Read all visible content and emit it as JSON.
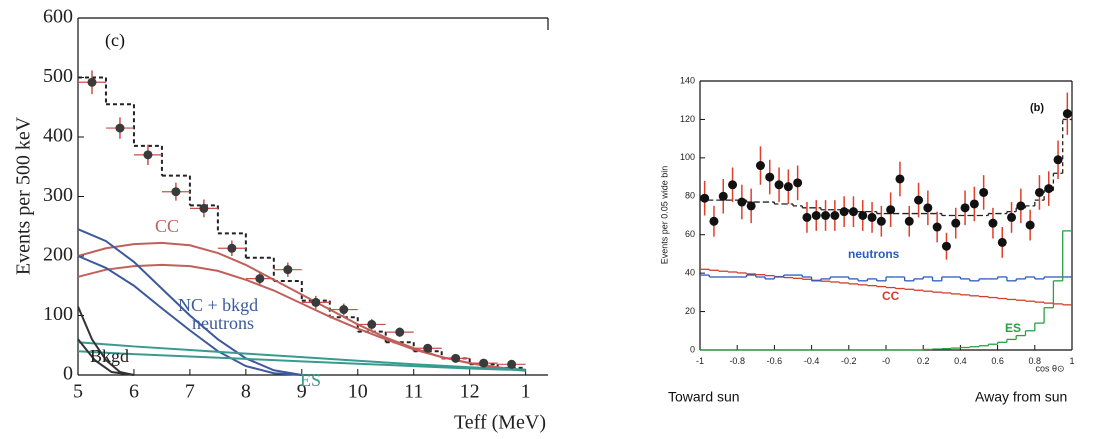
{
  "chart_data": [
    {
      "type": "line",
      "title": "(c)",
      "y_label": "Events per 500 keV",
      "x_label": "Teff (MeV)",
      "xlim": [
        5,
        13.4
      ],
      "ylim": [
        0,
        600
      ],
      "xticks": [
        5,
        6,
        7,
        8,
        9,
        10,
        11,
        12,
        {
          "value": 13,
          "label": "1"
        }
      ],
      "yticks": [
        0,
        100,
        200,
        300,
        400,
        500,
        600
      ],
      "series": [
        {
          "kind": "step",
          "color": "#222222",
          "dash": true,
          "bins": [
            5,
            5.5,
            6,
            6.5,
            7,
            7.5,
            8,
            8.5,
            9,
            9.5,
            10,
            10.5,
            11,
            11.5,
            12,
            12.5,
            13
          ],
          "values": [
            500,
            455,
            385,
            335,
            285,
            238,
            197,
            158,
            125,
            97,
            73,
            55,
            40,
            28,
            18,
            12
          ]
        },
        {
          "kind": "curve",
          "color": "#c0605a",
          "x": [
            5,
            5.5,
            6,
            6.5,
            7,
            7.5,
            8,
            8.5,
            9,
            9.5,
            10,
            10.5,
            11,
            11.5,
            12,
            12.5,
            13
          ],
          "values": [
            200,
            213,
            220,
            222,
            218,
            205,
            185,
            160,
            135,
            110,
            85,
            63,
            45,
            30,
            20,
            12,
            7
          ]
        },
        {
          "kind": "curve",
          "color": "#c0605a",
          "x": [
            5,
            5.5,
            6,
            6.5,
            7,
            7.5,
            8,
            8.5,
            9,
            9.5,
            10,
            10.5,
            11,
            11.5,
            12,
            12.5,
            13
          ],
          "values": [
            165,
            177,
            183,
            185,
            183,
            175,
            160,
            142,
            120,
            98,
            78,
            60,
            43,
            30,
            20,
            13,
            8
          ]
        },
        {
          "kind": "curve",
          "color": "#3c5a99",
          "x": [
            5,
            5.5,
            6,
            6.5,
            7,
            7.5,
            8,
            8.5,
            9
          ],
          "values": [
            245,
            225,
            190,
            145,
            100,
            60,
            28,
            8,
            0
          ]
        },
        {
          "kind": "curve",
          "color": "#3c5a99",
          "x": [
            5,
            5.5,
            6,
            6.5,
            7,
            7.5,
            8,
            8.5,
            9
          ],
          "values": [
            200,
            180,
            150,
            112,
            75,
            40,
            15,
            3,
            0
          ]
        },
        {
          "kind": "curve",
          "color": "#3a9a90",
          "x": [
            5,
            6,
            7,
            8,
            9,
            10,
            11,
            12,
            13
          ],
          "values": [
            55,
            48,
            42,
            36,
            30,
            24,
            18,
            13,
            9
          ]
        },
        {
          "kind": "curve",
          "color": "#3a9a90",
          "x": [
            5,
            6,
            7,
            8,
            9,
            10,
            11,
            12,
            13
          ],
          "values": [
            40,
            35,
            31,
            27,
            23,
            19,
            15,
            11,
            8
          ]
        },
        {
          "kind": "curve",
          "color": "#333333",
          "x": [
            5,
            5.25,
            5.5,
            5.75,
            6
          ],
          "values": [
            115,
            60,
            25,
            5,
            0
          ]
        },
        {
          "kind": "curve",
          "color": "#333333",
          "x": [
            5,
            5.3,
            5.6,
            6
          ],
          "values": [
            60,
            25,
            5,
            0
          ]
        },
        {
          "kind": "points",
          "color": "#3a3a3a",
          "error_color": "#c8504a",
          "xerr": 0.25,
          "x": [
            5.25,
            5.75,
            6.25,
            6.75,
            7.25,
            7.75,
            8.25,
            8.75,
            9.25,
            9.75,
            10.25,
            10.75,
            11.25,
            11.75,
            12.25,
            12.75
          ],
          "values": [
            492,
            415,
            370,
            308,
            280,
            213,
            162,
            177,
            122,
            110,
            85,
            72,
            45,
            28,
            20,
            18
          ],
          "yerr": [
            20,
            18,
            17,
            15,
            15,
            13,
            12,
            12,
            11,
            10,
            9,
            8,
            7,
            6,
            5,
            5
          ]
        }
      ],
      "annotations": [
        {
          "text": "CC",
          "color": "#c0605a"
        },
        {
          "text": "NC + bkgd",
          "color": "#3c5a99"
        },
        {
          "text": "neutrons",
          "color": "#3c5a99"
        },
        {
          "text": "ES",
          "color": "#3a9a90"
        },
        {
          "text": "Bkgd",
          "color": "#222222"
        }
      ]
    },
    {
      "type": "line",
      "title": "(b)",
      "y_label": "Events per 0.05 wide bin",
      "x_label": "cos θ⊙",
      "xlim": [
        -1,
        1
      ],
      "ylim": [
        0,
        140
      ],
      "xticks": [
        -1,
        -0.8,
        -0.6,
        -0.4,
        -0.2,
        {
          "value": 0,
          "label": "-0"
        },
        0.2,
        0.4,
        0.6,
        0.8,
        1
      ],
      "yticks": [
        0,
        20,
        40,
        60,
        80,
        100,
        120,
        140
      ],
      "bottom_left": "Toward sun",
      "bottom_right": "Away from sun",
      "series": [
        {
          "kind": "step",
          "color": "#d0402a",
          "dash": false,
          "bins": [
            -1,
            -0.95,
            -0.9,
            -0.85,
            -0.8,
            -0.75,
            -0.7,
            -0.65,
            -0.6,
            -0.55,
            -0.5,
            -0.45,
            -0.4,
            -0.35,
            -0.3,
            -0.25,
            -0.2,
            -0.15,
            -0.1,
            -0.05,
            0,
            0.05,
            0.1,
            0.15,
            0.2,
            0.25,
            0.3,
            0.35,
            0.4,
            0.45,
            0.5,
            0.55,
            0.6,
            0.65,
            0.7,
            0.75,
            0.8,
            0.85,
            0.9,
            0.95,
            1
          ],
          "values": [
            42,
            41.5,
            41,
            40.6,
            40.1,
            39.6,
            39.2,
            38.7,
            38.2,
            37.7,
            37.3,
            36.8,
            36.3,
            35.8,
            35.4,
            34.9,
            34.4,
            33.9,
            33.5,
            33,
            32.5,
            32,
            31.6,
            31.1,
            30.6,
            30.1,
            29.7,
            29.2,
            28.7,
            28.2,
            27.8,
            27.3,
            26.8,
            26.3,
            25.9,
            25.4,
            24.9,
            24.4,
            24,
            23.5
          ]
        },
        {
          "kind": "step",
          "color": "#2a5cc0",
          "dash": false,
          "bins": [
            -1,
            -0.95,
            -0.9,
            -0.85,
            -0.8,
            -0.75,
            -0.7,
            -0.65,
            -0.6,
            -0.55,
            -0.5,
            -0.45,
            -0.4,
            -0.35,
            -0.3,
            -0.25,
            -0.2,
            -0.15,
            -0.1,
            -0.05,
            0,
            0.05,
            0.1,
            0.15,
            0.2,
            0.25,
            0.3,
            0.35,
            0.4,
            0.45,
            0.5,
            0.55,
            0.6,
            0.65,
            0.7,
            0.75,
            0.8,
            0.85,
            0.9,
            0.95,
            1
          ],
          "values": [
            39,
            38,
            38,
            38,
            38,
            39,
            38,
            37,
            38,
            39,
            39,
            38,
            36,
            37,
            38,
            38,
            37,
            36,
            37,
            36,
            38,
            38,
            36,
            37,
            38,
            36,
            38,
            38,
            37,
            36,
            37,
            37,
            38,
            36,
            37,
            38,
            37,
            38,
            38,
            38
          ]
        },
        {
          "kind": "step",
          "color": "#2aa040",
          "dash": false,
          "bins": [
            -1,
            -0.95,
            -0.9,
            -0.85,
            -0.8,
            -0.75,
            -0.7,
            -0.65,
            -0.6,
            -0.55,
            -0.5,
            -0.45,
            -0.4,
            -0.35,
            -0.3,
            -0.25,
            -0.2,
            -0.15,
            -0.1,
            -0.05,
            0,
            0.05,
            0.1,
            0.15,
            0.2,
            0.25,
            0.3,
            0.35,
            0.4,
            0.45,
            0.5,
            0.55,
            0.6,
            0.65,
            0.7,
            0.75,
            0.8,
            0.85,
            0.9,
            0.95,
            1
          ],
          "values": [
            0,
            0,
            0,
            0,
            0,
            0,
            0,
            0,
            0,
            0,
            0,
            0,
            0,
            0,
            0,
            0,
            0,
            0,
            0,
            0,
            0,
            0,
            0,
            0,
            0.3,
            0.5,
            0.7,
            1,
            1.3,
            1.7,
            2.2,
            3,
            4,
            5.5,
            7.5,
            10,
            14,
            22,
            36,
            62
          ]
        },
        {
          "kind": "step",
          "color": "#222222",
          "dash": true,
          "bins": [
            -1,
            -0.95,
            -0.9,
            -0.85,
            -0.8,
            -0.75,
            -0.7,
            -0.65,
            -0.6,
            -0.55,
            -0.5,
            -0.45,
            -0.4,
            -0.35,
            -0.3,
            -0.25,
            -0.2,
            -0.15,
            -0.1,
            -0.05,
            0,
            0.05,
            0.1,
            0.15,
            0.2,
            0.25,
            0.3,
            0.35,
            0.4,
            0.45,
            0.5,
            0.55,
            0.6,
            0.65,
            0.7,
            0.75,
            0.8,
            0.85,
            0.9,
            0.95,
            1
          ],
          "values": [
            78,
            78,
            78,
            78,
            78,
            77,
            77,
            77,
            76,
            76,
            75,
            74,
            74,
            73,
            73,
            73,
            72,
            72,
            72,
            71,
            71,
            71,
            71,
            71,
            71,
            71,
            70,
            70,
            70,
            70,
            70,
            71,
            71,
            72,
            74,
            75,
            78,
            83,
            92,
            120
          ]
        },
        {
          "kind": "points",
          "color": "#111111",
          "error_color": "#e0402a",
          "xerr": 0,
          "x": [
            -0.975,
            -0.925,
            -0.875,
            -0.825,
            -0.775,
            -0.725,
            -0.675,
            -0.625,
            -0.575,
            -0.525,
            -0.475,
            -0.425,
            -0.375,
            -0.325,
            -0.275,
            -0.225,
            -0.175,
            -0.125,
            -0.075,
            -0.025,
            0.025,
            0.075,
            0.125,
            0.175,
            0.225,
            0.275,
            0.325,
            0.375,
            0.425,
            0.475,
            0.525,
            0.575,
            0.625,
            0.675,
            0.725,
            0.775,
            0.825,
            0.875,
            0.925,
            0.975
          ],
          "values": [
            79,
            67,
            80,
            86,
            77,
            75,
            96,
            90,
            86,
            85,
            87,
            69,
            70,
            70,
            70,
            72,
            72,
            70,
            69,
            67,
            73,
            89,
            67,
            78,
            74,
            64,
            54,
            66,
            74,
            76,
            82,
            66,
            56,
            69,
            75,
            65,
            82,
            84,
            99,
            123
          ],
          "yerr": [
            9,
            8,
            9,
            9,
            9,
            9,
            10,
            9,
            9,
            9,
            9,
            8,
            8,
            8,
            8,
            8,
            8,
            8,
            8,
            8,
            9,
            9,
            8,
            9,
            9,
            8,
            7,
            8,
            9,
            9,
            9,
            8,
            8,
            8,
            9,
            8,
            9,
            9,
            10,
            11
          ]
        }
      ],
      "annotations": [
        {
          "text": "neutrons",
          "color": "#2a5cc0"
        },
        {
          "text": "CC",
          "color": "#d0402a"
        },
        {
          "text": "ES",
          "color": "#2aa040"
        }
      ]
    }
  ]
}
